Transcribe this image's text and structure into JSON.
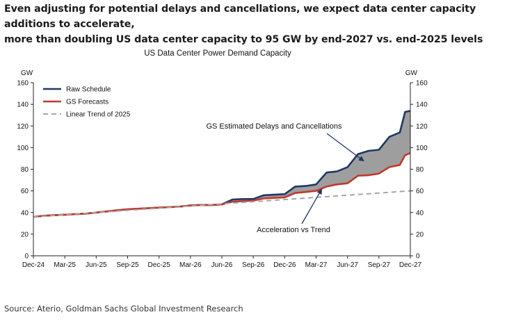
{
  "headline": {
    "line1": "Even adjusting for potential delays and cancellations, we expect data center capacity additions to accelerate,",
    "line2": "more than doubling US data center capacity to 95 GW by end-2027 vs. end-2025 levels"
  },
  "source": "Source: Aterio, Goldman Sachs Global Investment Research",
  "chart_data": {
    "type": "line",
    "title": "US Data Center Power Demand Capacity",
    "ylabel_left": "GW",
    "ylabel_right": "GW",
    "ylim": [
      0,
      160
    ],
    "yticks": [
      0,
      20,
      40,
      60,
      80,
      100,
      120,
      140,
      160
    ],
    "xlim": [
      0,
      36
    ],
    "xticks": [
      {
        "x": 0,
        "label": "Dec-24"
      },
      {
        "x": 3,
        "label": "Mar-25"
      },
      {
        "x": 6,
        "label": "Jun-25"
      },
      {
        "x": 9,
        "label": "Sep-25"
      },
      {
        "x": 12,
        "label": "Dec-25"
      },
      {
        "x": 15,
        "label": "Mar-26"
      },
      {
        "x": 18,
        "label": "Jun-26"
      },
      {
        "x": 21,
        "label": "Sep-26"
      },
      {
        "x": 24,
        "label": "Dec-26"
      },
      {
        "x": 27,
        "label": "Mar-27"
      },
      {
        "x": 30,
        "label": "Jun-27"
      },
      {
        "x": 33,
        "label": "Sep-27"
      },
      {
        "x": 36,
        "label": "Dec-27"
      }
    ],
    "legend_position": "top-left",
    "grid": false,
    "series": [
      {
        "name": "Raw Schedule",
        "color": "#1f3864",
        "x": [
          0,
          1,
          2,
          3,
          4,
          5,
          6,
          7,
          8,
          9,
          10,
          11,
          12,
          13,
          14,
          15,
          16,
          17,
          18,
          19,
          20,
          21,
          22,
          23,
          24,
          25,
          26,
          27,
          28,
          29,
          30,
          31,
          32,
          33,
          34,
          35,
          35.5,
          36
        ],
        "y": [
          36,
          37,
          37.5,
          38,
          38.5,
          39,
          40,
          41,
          42,
          43,
          43.5,
          44,
          44.5,
          45,
          45.5,
          46.5,
          47,
          47,
          47.5,
          52,
          52.5,
          52.5,
          56,
          56.5,
          57,
          64,
          64.5,
          66,
          77,
          78,
          82,
          94,
          97,
          98,
          110,
          114,
          133,
          134
        ]
      },
      {
        "name": "GS Forecasts",
        "color": "#c0392b",
        "x": [
          0,
          1,
          2,
          3,
          4,
          5,
          6,
          7,
          8,
          9,
          10,
          11,
          12,
          13,
          14,
          15,
          16,
          17,
          18,
          19,
          20,
          21,
          22,
          23,
          24,
          25,
          26,
          27,
          28,
          29,
          30,
          31,
          32,
          33,
          34,
          35,
          35.5,
          36
        ],
        "y": [
          36,
          37,
          37.5,
          38,
          38.5,
          39,
          40,
          41,
          42,
          43,
          43.5,
          44,
          44.5,
          45,
          45.5,
          46.5,
          47,
          47,
          47.5,
          50,
          50.5,
          51,
          53,
          53.5,
          54,
          58,
          59,
          60,
          64,
          66,
          67,
          74,
          74.5,
          76,
          82,
          84,
          93,
          95
        ]
      },
      {
        "name": "Linear Trend of 2025",
        "color": "#a6a6a6",
        "style": "dashed",
        "x": [
          0,
          36
        ],
        "y": [
          36,
          60
        ]
      }
    ],
    "area_between": {
      "upper": "Raw Schedule",
      "lower": "GS Forecasts",
      "color": "#9e9e9e",
      "start_x": 18
    },
    "annotations": [
      {
        "text": "GS Estimated Delays and Cancellations",
        "arrow_to": {
          "x": 31.5,
          "y": 88
        }
      },
      {
        "text": "Acceleration vs Trend",
        "arrow_to": {
          "x": 27.5,
          "y": 61
        }
      }
    ]
  }
}
